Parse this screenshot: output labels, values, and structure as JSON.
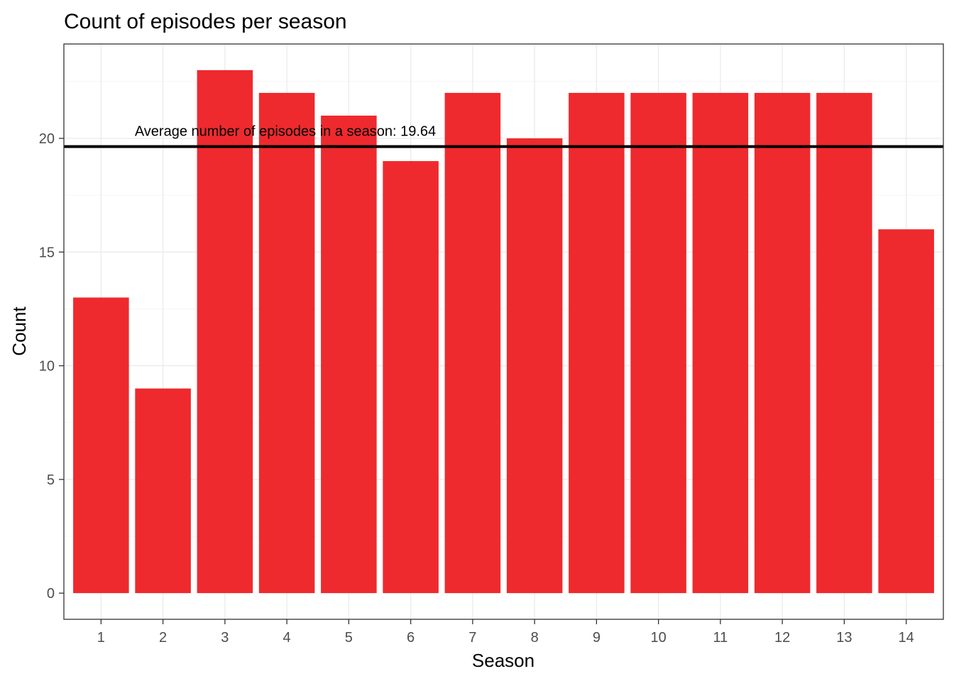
{
  "chart_data": {
    "type": "bar",
    "title": "Count of episodes per season",
    "xlabel": "Season",
    "ylabel": "Count",
    "categories": [
      "1",
      "2",
      "3",
      "4",
      "5",
      "6",
      "7",
      "8",
      "9",
      "10",
      "11",
      "12",
      "13",
      "14"
    ],
    "values": [
      13,
      9,
      23,
      22,
      21,
      19,
      22,
      20,
      22,
      22,
      22,
      22,
      22,
      16
    ],
    "ylim": [
      -1.15,
      24.15
    ],
    "yticks": [
      0,
      5,
      10,
      15,
      20
    ],
    "ytick_labels": [
      "0",
      "5",
      "10",
      "15",
      "20"
    ],
    "grid": true,
    "bar_color": "#EE2A2E",
    "reference_line": {
      "value": 19.64,
      "label": "Average number of episodes in a season: 19.64",
      "color": "#000000"
    }
  }
}
